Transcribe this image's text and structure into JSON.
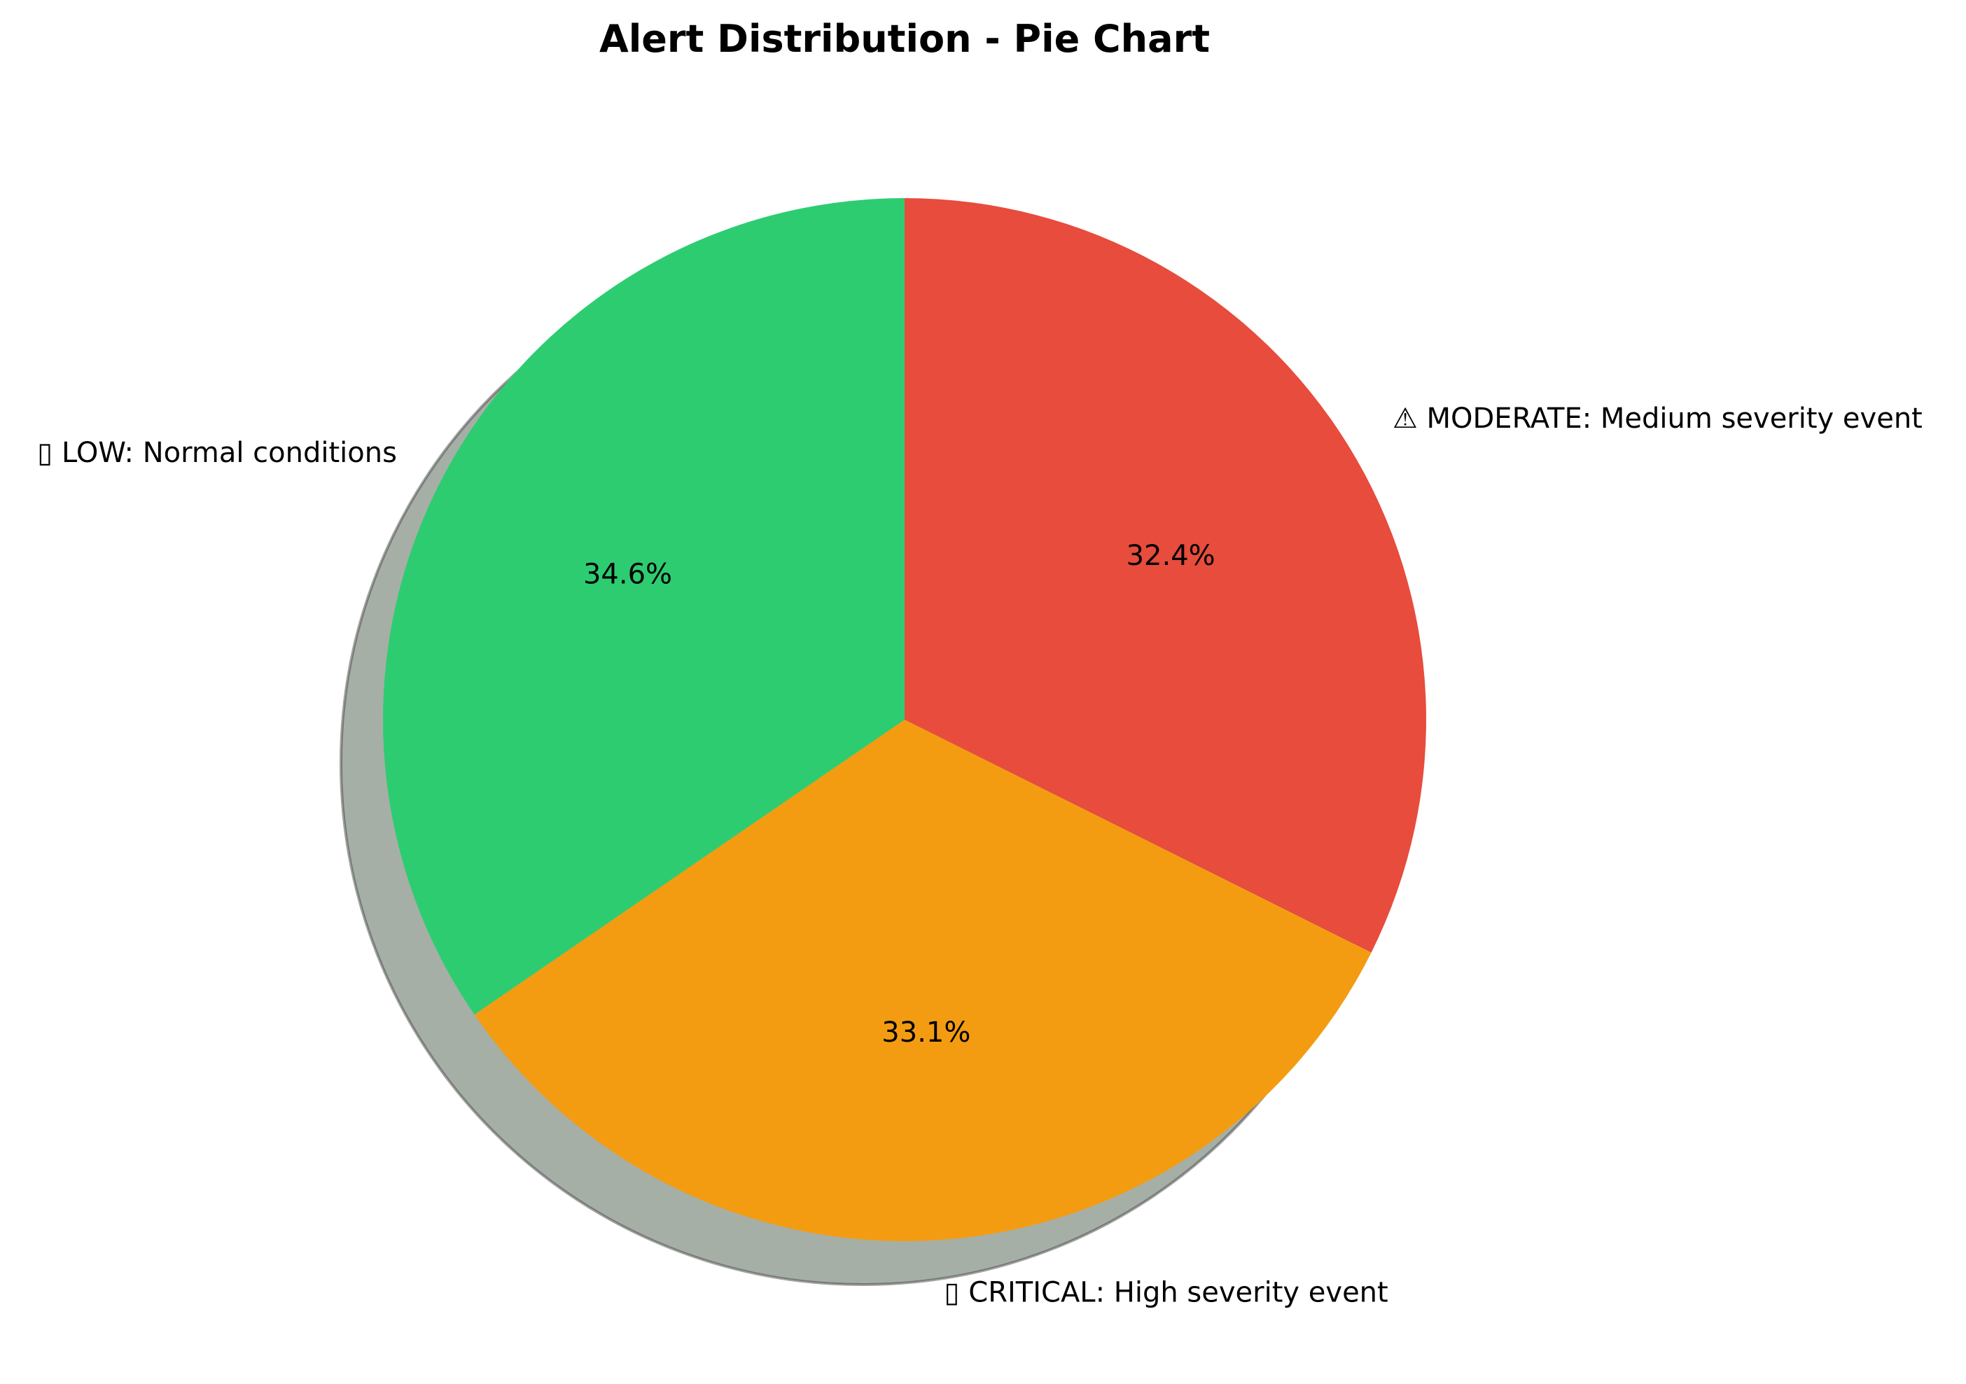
{
  "chart_data": {
    "type": "pie",
    "title": "Alert Distribution - Pie Chart",
    "start_angle_deg": 90,
    "direction": "clockwise",
    "shadow": true,
    "slices": [
      {
        "label": "⚠  MODERATE: Medium severity event",
        "value": 32.4,
        "pct_text": "32.4%",
        "color": "#e74c3c"
      },
      {
        "label": "▯ CRITICAL: High severity event",
        "value": 33.1,
        "pct_text": "33.1%",
        "color": "#f39c12"
      },
      {
        "label": "▯ LOW: Normal conditions",
        "value": 34.6,
        "pct_text": "34.6%",
        "color": "#2ecc71"
      }
    ]
  }
}
